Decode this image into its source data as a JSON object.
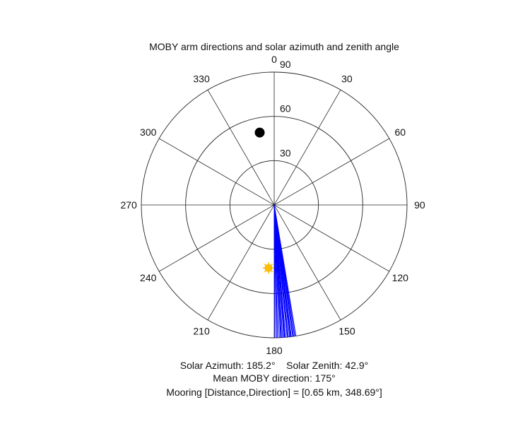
{
  "chart_data": {
    "type": "polar",
    "title": "MOBY arm directions and solar azimuth and zenith angle",
    "angle_direction": "clockwise",
    "zero_location": "top",
    "angular_ticks": [
      "0",
      "30",
      "60",
      "90",
      "120",
      "150",
      "180",
      "210",
      "240",
      "270",
      "300",
      "330"
    ],
    "angular_tick_values": [
      0,
      30,
      60,
      90,
      120,
      150,
      180,
      210,
      240,
      270,
      300,
      330
    ],
    "radial_range": [
      0,
      90
    ],
    "radial_ticks": [
      {
        "value": 30,
        "label": "30"
      },
      {
        "value": 60,
        "label": "60"
      },
      {
        "value": 90,
        "label": "90"
      }
    ],
    "grid": true,
    "colors": {
      "grid": "#262626",
      "arm_lines": "#0000ff",
      "sun_marker": "#ffc000",
      "mooring_marker": "#000000"
    },
    "series": [
      {
        "kind": "arm_lines",
        "color": "#0000ff",
        "radius": 90,
        "azimuths": [
          179.0,
          179.7,
          177.2,
          176.4,
          175.8,
          175.1,
          174.4,
          173.9,
          173.3,
          172.6,
          172.0,
          171.6,
          171.1,
          170.6,
          176.9,
          175.5,
          174.0,
          172.9,
          178.5,
          177.8
        ]
      },
      {
        "kind": "sun",
        "marker": "sun-icon",
        "color": "#ffc000",
        "azimuth": 185.2,
        "zenith": 42.9
      },
      {
        "kind": "mooring",
        "marker": "filled-circle",
        "color": "#000000",
        "azimuth": 348.69,
        "radius": 50
      }
    ],
    "annotations": [
      "Solar Azimuth: 185.2°    Solar Zenith: 42.9°",
      "Mean MOBY direction: 175°",
      "Mooring [Distance,Direction] = [0.65 km, 348.69°]"
    ]
  }
}
